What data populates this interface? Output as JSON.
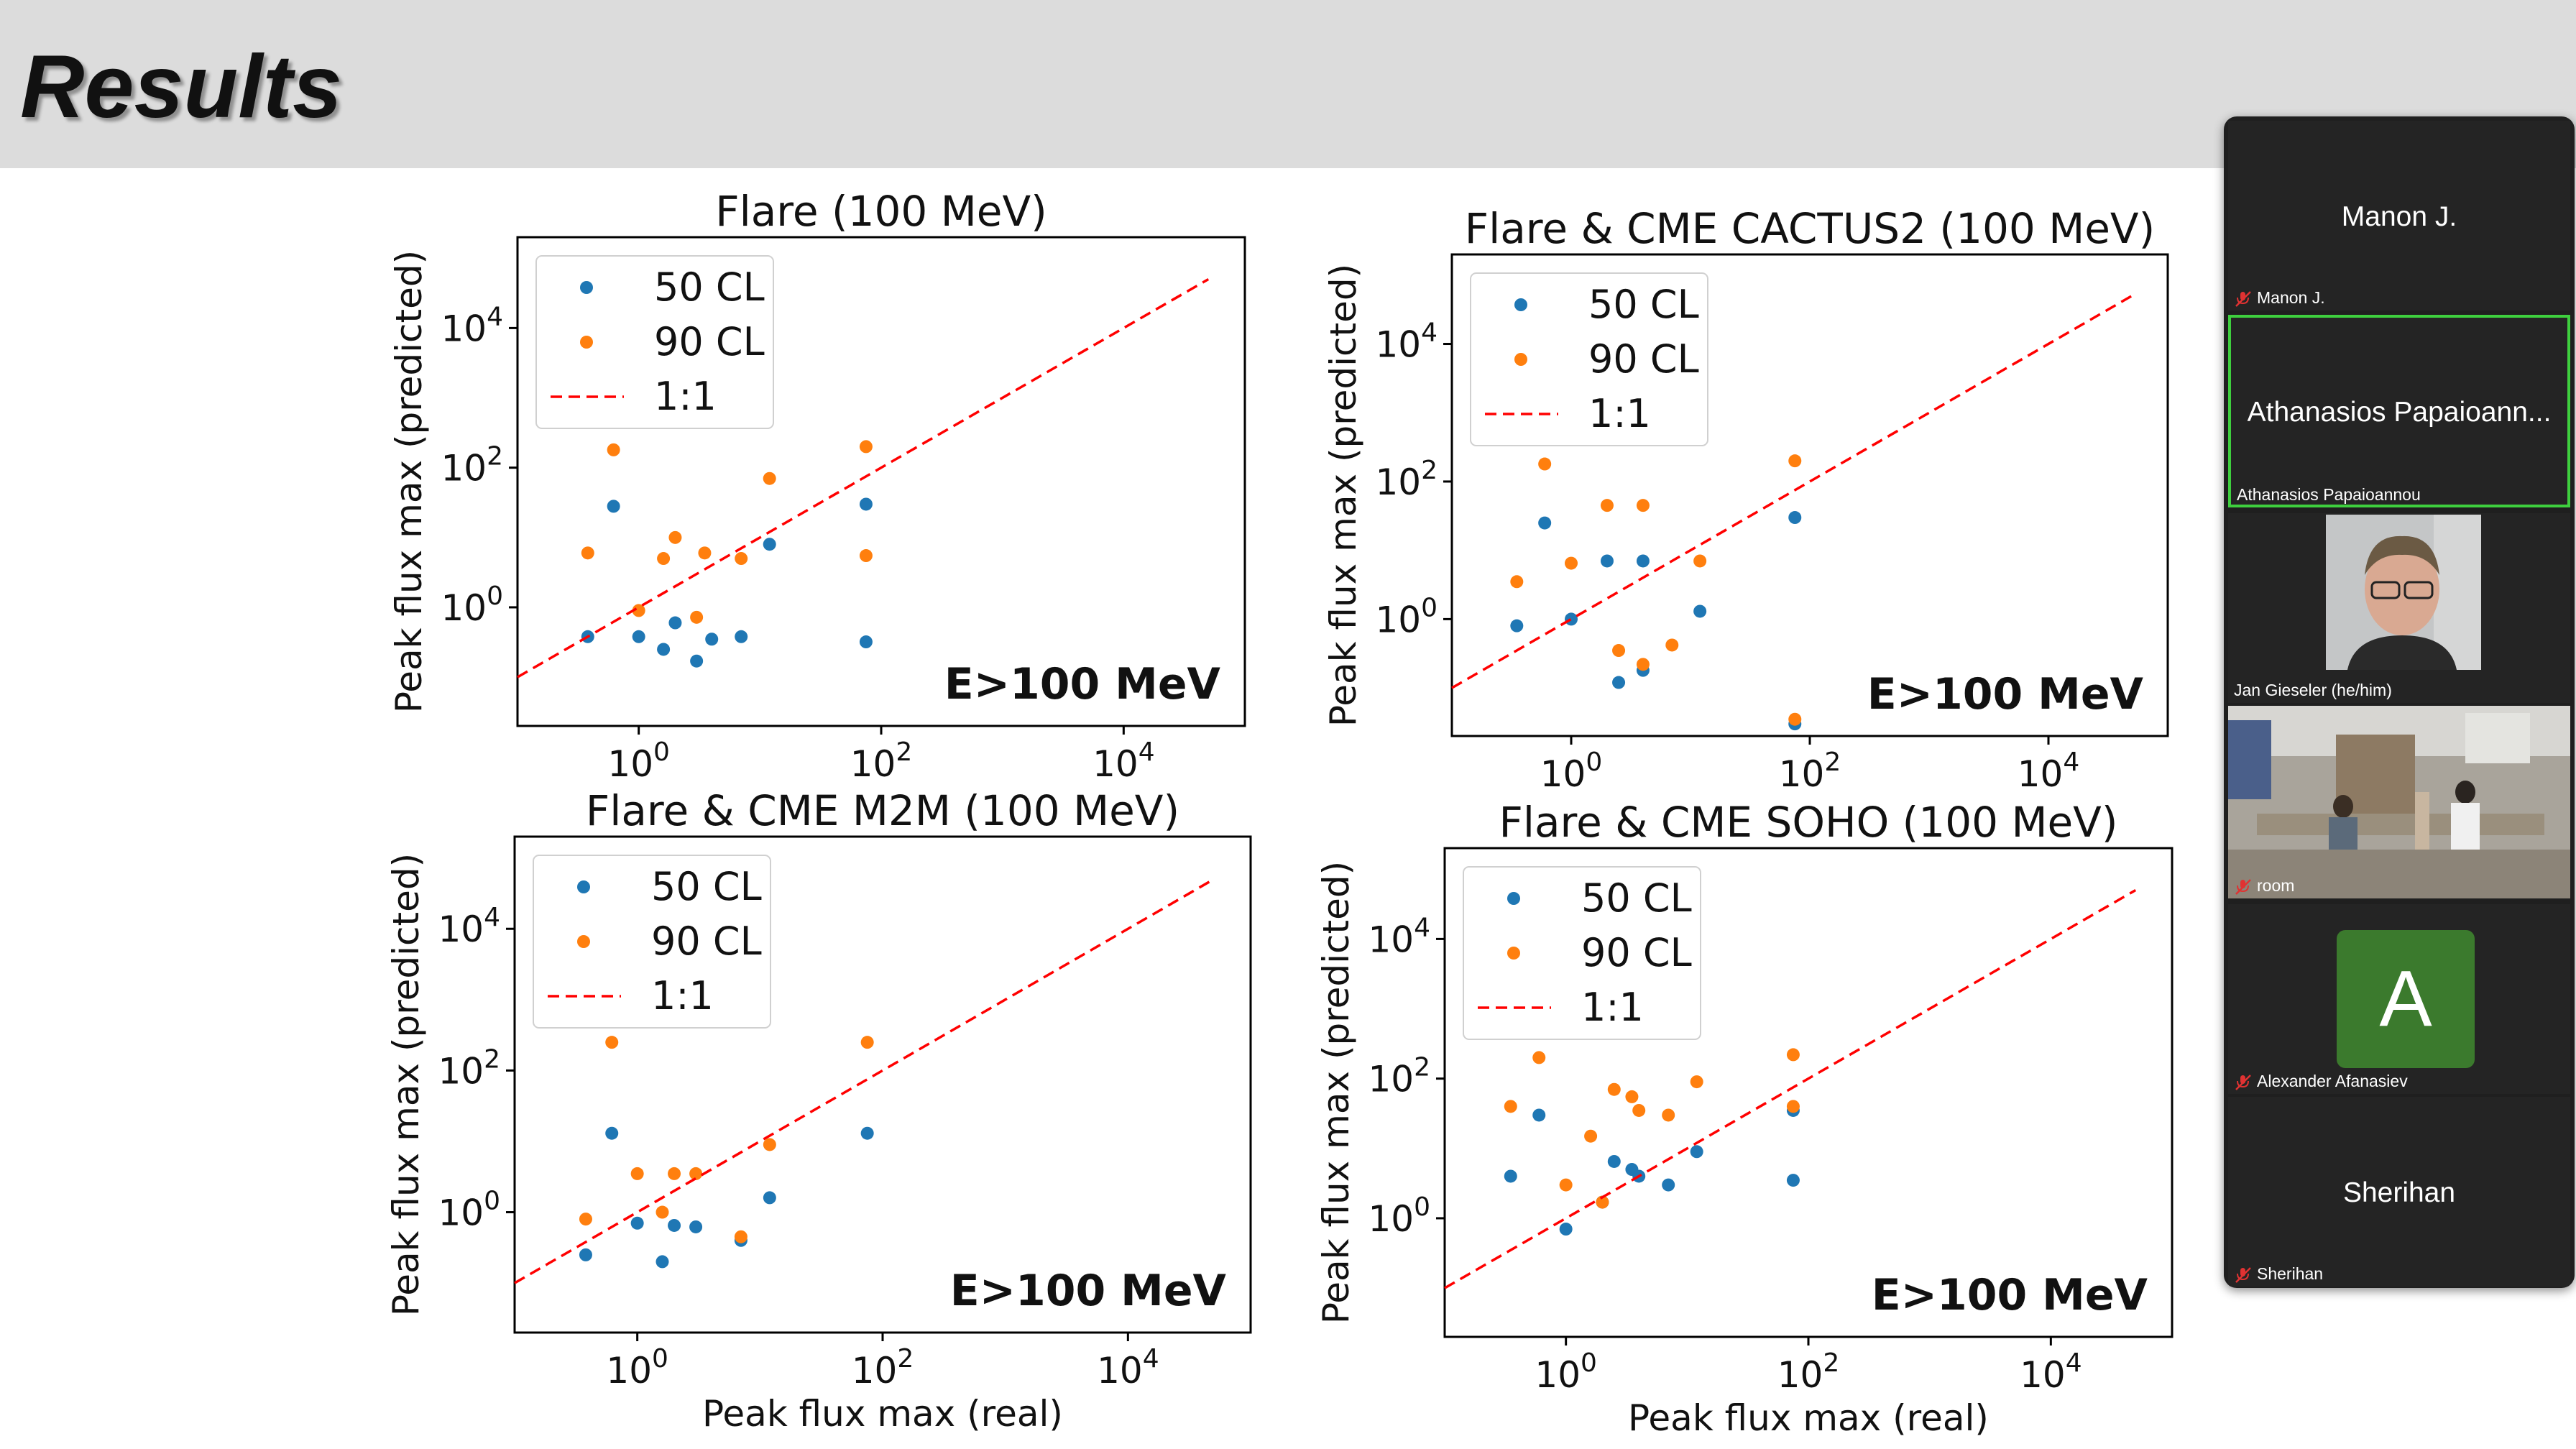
{
  "slide": {
    "title": "Results"
  },
  "chart_data": [
    {
      "type": "scatter",
      "title": "Flare (100 MeV)",
      "xlabel": "",
      "ylabel": "Peak flux max (predicted)",
      "scale": "log",
      "xlim": [
        0.1,
        100000
      ],
      "ylim": [
        0.02,
        200000
      ],
      "xticks": [
        1,
        100,
        10000
      ],
      "yticks": [
        1,
        100,
        10000
      ],
      "annotation": "E>100 MeV",
      "legend": {
        "position": "top-left",
        "entries": [
          "50 CL",
          "90 CL",
          "1:1"
        ]
      },
      "series": [
        {
          "name": "50 CL",
          "color": "#1f77b4",
          "points": [
            [
              0.38,
              0.38
            ],
            [
              0.62,
              28
            ],
            [
              1.0,
              0.38
            ],
            [
              1.6,
              0.25
            ],
            [
              2.0,
              0.6
            ],
            [
              3.0,
              0.17
            ],
            [
              4.0,
              0.35
            ],
            [
              7.0,
              0.38
            ],
            [
              12,
              8
            ],
            [
              75,
              30
            ],
            [
              75,
              0.32
            ]
          ]
        },
        {
          "name": "90 CL",
          "color": "#ff7f0e",
          "points": [
            [
              0.38,
              6
            ],
            [
              0.62,
              180
            ],
            [
              1.0,
              0.9
            ],
            [
              1.6,
              5
            ],
            [
              2.0,
              10
            ],
            [
              3.0,
              0.72
            ],
            [
              3.5,
              6
            ],
            [
              7.0,
              5
            ],
            [
              12,
              70
            ],
            [
              75,
              200
            ],
            [
              75,
              5.5
            ]
          ]
        },
        {
          "name": "1:1",
          "color": "#ff0000",
          "line": [
            [
              0.1,
              0.1
            ],
            [
              50000,
              50000
            ]
          ]
        }
      ]
    },
    {
      "type": "scatter",
      "title": "Flare & CME CACTUS2 (100 MeV)",
      "xlabel": "",
      "ylabel": "Peak flux max (predicted)",
      "scale": "log",
      "xlim": [
        0.1,
        100000
      ],
      "ylim": [
        0.02,
        200000
      ],
      "xticks": [
        1,
        100,
        10000
      ],
      "yticks": [
        1,
        100,
        10000
      ],
      "annotation": "E>100 MeV",
      "legend": {
        "position": "top-left",
        "entries": [
          "50 CL",
          "90 CL",
          "1:1"
        ]
      },
      "series": [
        {
          "name": "50 CL",
          "color": "#1f77b4",
          "points": [
            [
              0.35,
              0.8
            ],
            [
              0.6,
              25
            ],
            [
              1.0,
              1.0
            ],
            [
              2.5,
              0.12
            ],
            [
              2.0,
              7
            ],
            [
              4.0,
              7
            ],
            [
              4.0,
              0.18
            ],
            [
              12,
              1.3
            ],
            [
              75,
              30
            ],
            [
              75,
              0.03
            ]
          ]
        },
        {
          "name": "90 CL",
          "color": "#ff7f0e",
          "points": [
            [
              0.35,
              3.5
            ],
            [
              0.6,
              180
            ],
            [
              1.0,
              6.5
            ],
            [
              2.5,
              0.35
            ],
            [
              2.0,
              45
            ],
            [
              4.0,
              45
            ],
            [
              4.0,
              0.22
            ],
            [
              7.0,
              0.42
            ],
            [
              12,
              7
            ],
            [
              75,
              200
            ],
            [
              75,
              0.035
            ]
          ]
        },
        {
          "name": "1:1",
          "color": "#ff0000",
          "line": [
            [
              0.1,
              0.1
            ],
            [
              50000,
              50000
            ]
          ]
        }
      ]
    },
    {
      "type": "scatter",
      "title": "Flare & CME M2M (100 MeV)",
      "xlabel": "Peak flux max (real)",
      "ylabel": "Peak flux max (predicted)",
      "scale": "log",
      "xlim": [
        0.1,
        100000
      ],
      "ylim": [
        0.02,
        200000
      ],
      "xticks": [
        1,
        100,
        10000
      ],
      "yticks": [
        1,
        100,
        10000
      ],
      "annotation": "E>100 MeV",
      "legend": {
        "position": "top-left",
        "entries": [
          "50 CL",
          "90 CL",
          "1:1"
        ]
      },
      "series": [
        {
          "name": "50 CL",
          "color": "#1f77b4",
          "points": [
            [
              0.38,
              0.25
            ],
            [
              0.62,
              13
            ],
            [
              1.0,
              0.7
            ],
            [
              1.6,
              0.2
            ],
            [
              2.0,
              0.65
            ],
            [
              3.0,
              0.62
            ],
            [
              7.0,
              0.4
            ],
            [
              12,
              1.6
            ],
            [
              75,
              13
            ]
          ]
        },
        {
          "name": "90 CL",
          "color": "#ff7f0e",
          "points": [
            [
              0.38,
              0.8
            ],
            [
              0.62,
              250
            ],
            [
              1.0,
              3.5
            ],
            [
              1.6,
              1.0
            ],
            [
              2.0,
              3.5
            ],
            [
              3.0,
              3.5
            ],
            [
              7.0,
              0.45
            ],
            [
              12,
              9
            ],
            [
              75,
              250
            ]
          ]
        },
        {
          "name": "1:1",
          "color": "#ff0000",
          "line": [
            [
              0.1,
              0.1
            ],
            [
              50000,
              50000
            ]
          ]
        }
      ]
    },
    {
      "type": "scatter",
      "title": "Flare & CME SOHO (100 MeV)",
      "xlabel": "Peak flux max (real)",
      "ylabel": "Peak flux max (predicted)",
      "scale": "log",
      "xlim": [
        0.1,
        100000
      ],
      "ylim": [
        0.02,
        200000
      ],
      "xticks": [
        1,
        100,
        10000
      ],
      "yticks": [
        1,
        100,
        10000
      ],
      "annotation": "E>100 MeV",
      "legend": {
        "position": "top-left",
        "entries": [
          "50 CL",
          "90 CL",
          "1:1"
        ]
      },
      "series": [
        {
          "name": "50 CL",
          "color": "#1f77b4",
          "points": [
            [
              0.35,
              4
            ],
            [
              0.6,
              30
            ],
            [
              1.0,
              0.7
            ],
            [
              2.0,
              1.7
            ],
            [
              2.5,
              6.5
            ],
            [
              3.5,
              5
            ],
            [
              4.0,
              4
            ],
            [
              7.0,
              3
            ],
            [
              12,
              9
            ],
            [
              75,
              3.5
            ],
            [
              75,
              35
            ]
          ]
        },
        {
          "name": "90 CL",
          "color": "#ff7f0e",
          "points": [
            [
              0.35,
              40
            ],
            [
              0.6,
              200
            ],
            [
              1.0,
              3
            ],
            [
              1.6,
              15
            ],
            [
              2.0,
              1.7
            ],
            [
              2.5,
              70
            ],
            [
              3.5,
              55
            ],
            [
              4.0,
              35
            ],
            [
              7.0,
              30
            ],
            [
              12,
              90
            ],
            [
              75,
              220
            ],
            [
              75,
              40
            ]
          ]
        },
        {
          "name": "1:1",
          "color": "#ff0000",
          "line": [
            [
              0.1,
              0.1
            ],
            [
              50000,
              50000
            ]
          ]
        }
      ]
    }
  ],
  "participants": [
    {
      "name": "Manon J.",
      "caption": "Manon J.",
      "muted": true
    },
    {
      "name": "Athanasios Papaioann...",
      "caption": "Athanasios Papaioannou",
      "muted": false,
      "speaking": true
    },
    {
      "caption": "Jan Gieseler (he/him)",
      "muted": false,
      "video": true
    },
    {
      "caption": "room",
      "muted": true,
      "video": true
    },
    {
      "avatar_letter": "A",
      "caption": "Alexander Afanasiev",
      "muted": true,
      "avatar_color": "#3b7a2d"
    },
    {
      "name": "Sherihan",
      "caption": "Sherihan",
      "muted": true
    }
  ]
}
